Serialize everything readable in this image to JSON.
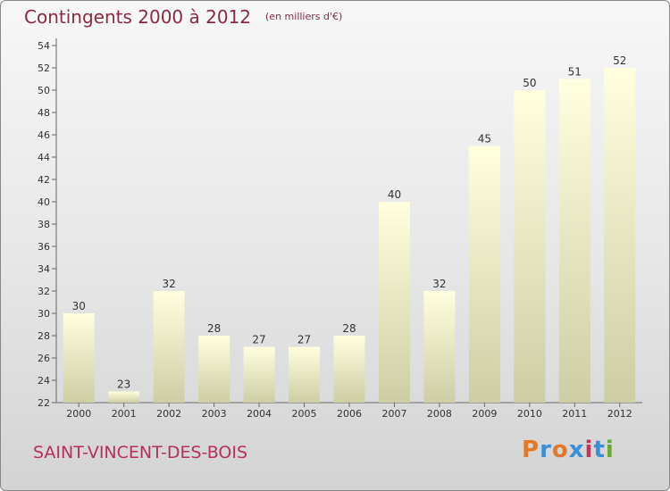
{
  "header": {
    "title": "Contingents 2000 à 2012",
    "subtitle": "(en milliers d'€)"
  },
  "footer": {
    "place": "SAINT-VINCENT-DES-BOIS",
    "logo": [
      "P",
      "r",
      "o",
      "x",
      "i",
      "t",
      "i"
    ]
  },
  "colors": {
    "title": "#8a2a44",
    "place": "#b5305a",
    "bar_top": "#ffffe0",
    "bar_bottom": "#cdcda5",
    "logo": [
      "#e2782a",
      "#3a8fd6",
      "#e2782a",
      "#3a8fd6",
      "#c0365a",
      "#3a8fd6",
      "#6aa83a"
    ]
  },
  "chart_data": {
    "type": "bar",
    "title": "Contingents 2000 à 2012",
    "subtitle": "(en milliers d'€)",
    "categories": [
      "2000",
      "2001",
      "2002",
      "2003",
      "2004",
      "2005",
      "2006",
      "2007",
      "2008",
      "2009",
      "2010",
      "2011",
      "2012"
    ],
    "values": [
      30,
      23,
      32,
      28,
      27,
      27,
      28,
      40,
      32,
      45,
      50,
      51,
      52
    ],
    "ylim": [
      22,
      54
    ],
    "yticks": [
      22,
      24,
      26,
      28,
      30,
      32,
      34,
      36,
      38,
      40,
      42,
      44,
      46,
      48,
      50,
      52,
      54
    ],
    "xlabel": "",
    "ylabel": "",
    "grid": false,
    "data_labels": true
  }
}
